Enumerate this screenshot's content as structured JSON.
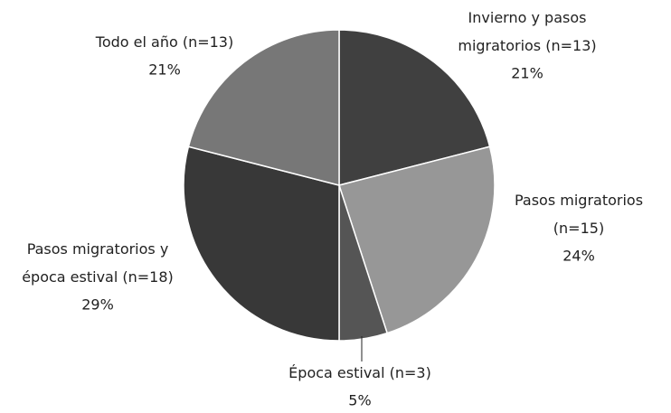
{
  "chart_data": {
    "type": "pie",
    "categories": [
      "Invierno y pasos migratorios (n=13)",
      "Pasos migratorios (n=15)",
      "Época estival (n=3)",
      "Pasos migratorios y época estival (n=18)",
      "Todo el año (n=13)"
    ],
    "values": [
      21,
      24,
      5,
      29,
      21
    ],
    "value_labels": [
      "21%",
      "24%",
      "5%",
      "29%",
      "21%"
    ],
    "colors": [
      "#404040",
      "#979797",
      "#555555",
      "#383838",
      "#777777"
    ]
  }
}
